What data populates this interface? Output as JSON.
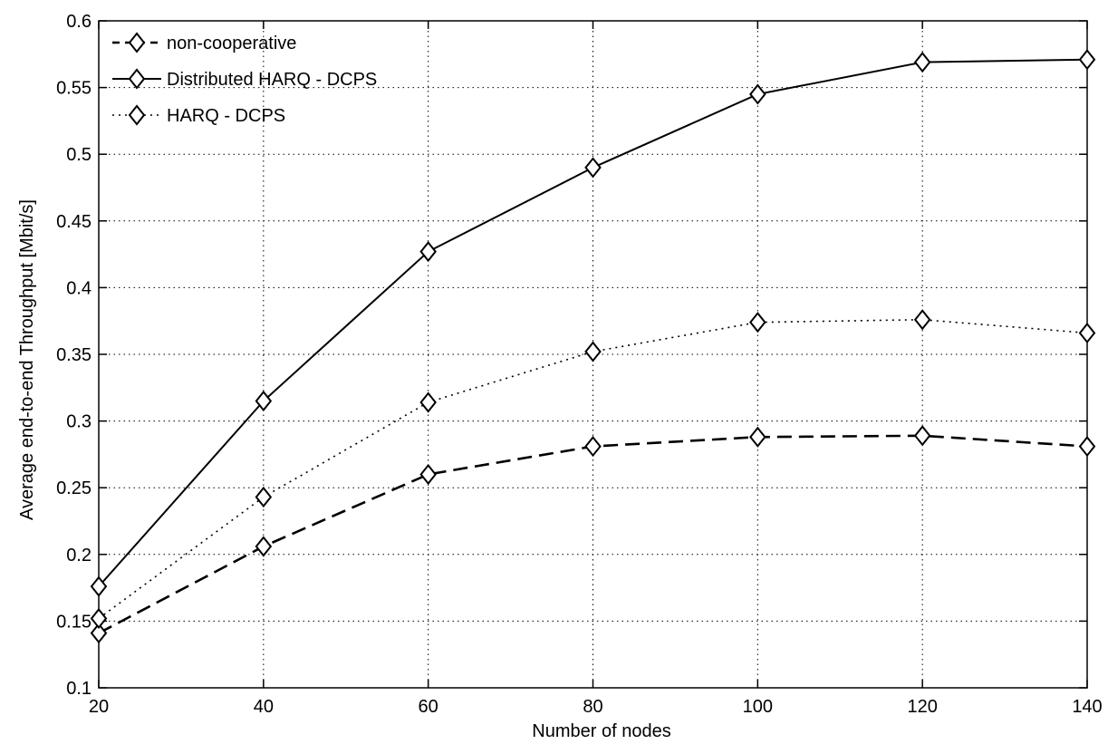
{
  "chart_data": {
    "type": "line",
    "title": "",
    "xlabel": "Number of nodes",
    "ylabel": "Average end-to-end Throughput [Mbit/s]",
    "x": [
      20,
      40,
      60,
      80,
      100,
      120,
      140
    ],
    "xlim": [
      20,
      140
    ],
    "ylim": [
      0.1,
      0.6
    ],
    "xticks": [
      20,
      40,
      60,
      80,
      100,
      120,
      140
    ],
    "xtick_labels": [
      "20",
      "40",
      "60",
      "80",
      "100",
      "120",
      "140"
    ],
    "yticks": [
      0.1,
      0.15,
      0.2,
      0.25,
      0.3,
      0.35,
      0.4,
      0.45,
      0.5,
      0.55,
      0.6
    ],
    "ytick_labels": [
      "0.1",
      "0.15",
      "0.2",
      "0.25",
      "0.3",
      "0.35",
      "0.4",
      "0.45",
      "0.5",
      "0.55",
      "0.6"
    ],
    "grid": true,
    "legend_position": "top-left",
    "series": [
      {
        "name": "non-cooperative",
        "line_style": "dashed",
        "marker": "diamond",
        "values": [
          0.141,
          0.206,
          0.26,
          0.281,
          0.288,
          0.289,
          0.281
        ]
      },
      {
        "name": "Distributed HARQ - DCPS",
        "line_style": "solid",
        "marker": "diamond",
        "values": [
          0.176,
          0.315,
          0.427,
          0.49,
          0.545,
          0.569,
          0.571
        ]
      },
      {
        "name": "HARQ - DCPS",
        "line_style": "dotted",
        "marker": "diamond",
        "values": [
          0.152,
          0.243,
          0.314,
          0.352,
          0.374,
          0.376,
          0.366
        ]
      }
    ]
  }
}
